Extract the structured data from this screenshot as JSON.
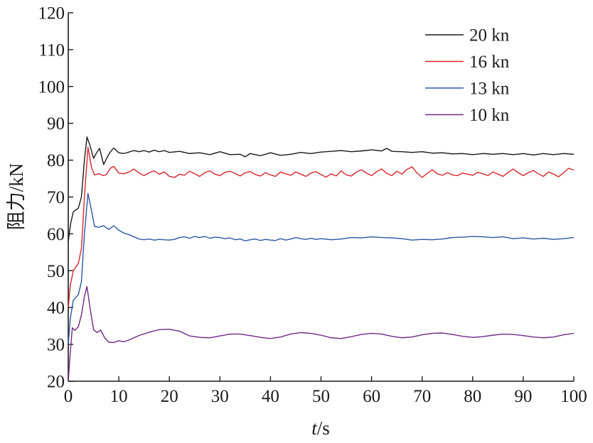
{
  "chart_data": {
    "type": "line",
    "xlabel_italic": "t",
    "xlabel_unit": "/s",
    "ylabel": "阻力/kN",
    "xlim": [
      0,
      100
    ],
    "ylim": [
      20,
      120
    ],
    "xticks": [
      0,
      10,
      20,
      30,
      40,
      50,
      60,
      70,
      80,
      90,
      100
    ],
    "yticks": [
      20,
      30,
      40,
      50,
      60,
      70,
      80,
      90,
      100,
      110,
      120
    ],
    "grid": false,
    "legend_position": "top-right",
    "series": [
      {
        "name": "20 kn",
        "color": "#1a1a1a",
        "points": [
          [
            0,
            58
          ],
          [
            0.5,
            63
          ],
          [
            1,
            66
          ],
          [
            2,
            67
          ],
          [
            2.6,
            70
          ],
          [
            3.2,
            80
          ],
          [
            3.7,
            86.3
          ],
          [
            4.3,
            84
          ],
          [
            5,
            80.5
          ],
          [
            5.6,
            82
          ],
          [
            6.2,
            83.2
          ],
          [
            7,
            78.8
          ],
          [
            7.6,
            80.5
          ],
          [
            8.2,
            82
          ],
          [
            9,
            83.3
          ],
          [
            10,
            82
          ],
          [
            11,
            81.8
          ],
          [
            12,
            82.2
          ],
          [
            13,
            82.6
          ],
          [
            14,
            82.3
          ],
          [
            15,
            82.6
          ],
          [
            16,
            82.2
          ],
          [
            17,
            82.7
          ],
          [
            18,
            82.3
          ],
          [
            19,
            82.6
          ],
          [
            20,
            82.1
          ],
          [
            22,
            82.4
          ],
          [
            24,
            81.8
          ],
          [
            26,
            82
          ],
          [
            28,
            81.5
          ],
          [
            30,
            82.3
          ],
          [
            32,
            81.5
          ],
          [
            34,
            81.6
          ],
          [
            35,
            80.9
          ],
          [
            36,
            81.8
          ],
          [
            38,
            81.2
          ],
          [
            40,
            82
          ],
          [
            42,
            81.3
          ],
          [
            44,
            81.6
          ],
          [
            46,
            82.1
          ],
          [
            48,
            81.8
          ],
          [
            50,
            82.2
          ],
          [
            52,
            82.4
          ],
          [
            54,
            82.6
          ],
          [
            56,
            82.3
          ],
          [
            58,
            82.5
          ],
          [
            60,
            82.8
          ],
          [
            62,
            82.5
          ],
          [
            63,
            83.2
          ],
          [
            64,
            82.4
          ],
          [
            66,
            82.3
          ],
          [
            68,
            82.1
          ],
          [
            70,
            82.3
          ],
          [
            72,
            81.9
          ],
          [
            74,
            82
          ],
          [
            76,
            81.7
          ],
          [
            78,
            81.8
          ],
          [
            80,
            81.5
          ],
          [
            82,
            81.8
          ],
          [
            84,
            81.6
          ],
          [
            86,
            81.8
          ],
          [
            88,
            81.5
          ],
          [
            90,
            81.8
          ],
          [
            92,
            81.4
          ],
          [
            94,
            81.8
          ],
          [
            96,
            81.5
          ],
          [
            98,
            81.8
          ],
          [
            100,
            81.6
          ]
        ]
      },
      {
        "name": "16 kn",
        "color": "#d8262b",
        "points": [
          [
            0,
            40
          ],
          [
            0.4,
            46
          ],
          [
            1,
            50
          ],
          [
            2,
            52
          ],
          [
            2.6,
            56
          ],
          [
            3.2,
            70
          ],
          [
            3.9,
            83.5
          ],
          [
            4.6,
            78
          ],
          [
            5.2,
            76
          ],
          [
            6,
            76.3
          ],
          [
            7,
            75.8
          ],
          [
            7.6,
            76.2
          ],
          [
            8.3,
            77.8
          ],
          [
            9,
            78.3
          ],
          [
            10,
            76.5
          ],
          [
            11,
            76.3
          ],
          [
            12,
            76.8
          ],
          [
            13,
            77.6
          ],
          [
            14,
            76.5
          ],
          [
            15,
            75.8
          ],
          [
            16,
            76.6
          ],
          [
            17,
            77.1
          ],
          [
            18,
            76.2
          ],
          [
            19,
            76.8
          ],
          [
            20,
            75.6
          ],
          [
            21,
            75.3
          ],
          [
            22,
            76.2
          ],
          [
            23,
            75.9
          ],
          [
            24,
            77
          ],
          [
            25,
            76.3
          ],
          [
            26,
            75.6
          ],
          [
            27,
            76.6
          ],
          [
            28,
            77.1
          ],
          [
            29,
            76.2
          ],
          [
            30,
            75.8
          ],
          [
            31,
            76.7
          ],
          [
            32,
            77
          ],
          [
            33,
            76.4
          ],
          [
            34,
            75.7
          ],
          [
            35,
            76.6
          ],
          [
            36,
            76.9
          ],
          [
            37,
            76.1
          ],
          [
            38,
            75.7
          ],
          [
            39,
            76.6
          ],
          [
            40,
            76
          ],
          [
            41,
            75.6
          ],
          [
            42,
            76.8
          ],
          [
            43,
            76.3
          ],
          [
            44,
            75.9
          ],
          [
            45,
            76.8
          ],
          [
            46,
            76.2
          ],
          [
            47,
            75.6
          ],
          [
            48,
            76.5
          ],
          [
            49,
            76.9
          ],
          [
            50,
            76.1
          ],
          [
            51,
            75.4
          ],
          [
            52,
            76.3
          ],
          [
            53,
            75.7
          ],
          [
            54,
            77.1
          ],
          [
            55,
            76
          ],
          [
            56,
            75.7
          ],
          [
            57,
            76.8
          ],
          [
            58,
            77.4
          ],
          [
            59,
            76.5
          ],
          [
            60,
            75.8
          ],
          [
            61,
            76.9
          ],
          [
            62,
            77.6
          ],
          [
            63,
            76.4
          ],
          [
            64,
            75.8
          ],
          [
            65,
            77
          ],
          [
            66,
            76.2
          ],
          [
            67,
            77.5
          ],
          [
            68,
            78.2
          ],
          [
            69,
            76.5
          ],
          [
            70,
            75.3
          ],
          [
            71,
            76.4
          ],
          [
            72,
            77.4
          ],
          [
            73,
            76.3
          ],
          [
            74,
            75.9
          ],
          [
            75,
            76.6
          ],
          [
            76,
            76
          ],
          [
            77,
            75.8
          ],
          [
            78,
            76.5
          ],
          [
            79,
            76.2
          ],
          [
            80,
            75.9
          ],
          [
            81,
            76.7
          ],
          [
            82,
            76.3
          ],
          [
            83,
            75.8
          ],
          [
            84,
            76.8
          ],
          [
            85,
            76.2
          ],
          [
            86,
            75.6
          ],
          [
            87,
            76.7
          ],
          [
            88,
            77.6
          ],
          [
            89,
            76.6
          ],
          [
            90,
            75.8
          ],
          [
            91,
            76.6
          ],
          [
            92,
            77.2
          ],
          [
            93,
            76.3
          ],
          [
            94,
            75.6
          ],
          [
            95,
            76.8
          ],
          [
            96,
            76.2
          ],
          [
            97,
            75.5
          ],
          [
            98,
            76.6
          ],
          [
            99,
            77.8
          ],
          [
            100,
            77.3
          ]
        ]
      },
      {
        "name": "13 kn",
        "color": "#2b57a6",
        "points": [
          [
            0,
            30
          ],
          [
            0.4,
            37
          ],
          [
            1,
            42
          ],
          [
            2,
            43.5
          ],
          [
            2.6,
            47
          ],
          [
            3.2,
            60
          ],
          [
            3.9,
            71
          ],
          [
            4.5,
            67
          ],
          [
            5.2,
            62
          ],
          [
            6,
            61.8
          ],
          [
            7,
            62.2
          ],
          [
            8,
            61.2
          ],
          [
            9,
            62.2
          ],
          [
            10,
            61
          ],
          [
            11,
            60.2
          ],
          [
            12,
            59.8
          ],
          [
            13,
            59.2
          ],
          [
            14,
            58.6
          ],
          [
            15,
            58.4
          ],
          [
            16,
            58.6
          ],
          [
            17,
            58.3
          ],
          [
            18,
            58.5
          ],
          [
            19,
            58.4
          ],
          [
            20,
            58.3
          ],
          [
            21,
            58.5
          ],
          [
            22,
            59
          ],
          [
            23,
            59.2
          ],
          [
            24,
            58.8
          ],
          [
            25,
            59.3
          ],
          [
            26,
            59
          ],
          [
            27,
            59.3
          ],
          [
            28,
            58.8
          ],
          [
            29,
            59.1
          ],
          [
            30,
            59
          ],
          [
            31,
            58.7
          ],
          [
            32,
            58.9
          ],
          [
            33,
            58.4
          ],
          [
            34,
            58.6
          ],
          [
            35,
            58.1
          ],
          [
            36,
            58.4
          ],
          [
            37,
            58.6
          ],
          [
            38,
            58.2
          ],
          [
            39,
            58.5
          ],
          [
            40,
            58.3
          ],
          [
            41,
            58.2
          ],
          [
            42,
            58.7
          ],
          [
            43,
            58.3
          ],
          [
            44,
            58.6
          ],
          [
            45,
            59
          ],
          [
            46,
            58.7
          ],
          [
            47,
            58.5
          ],
          [
            48,
            58.8
          ],
          [
            49,
            58.5
          ],
          [
            50,
            58.7
          ],
          [
            52,
            58.4
          ],
          [
            54,
            58.6
          ],
          [
            56,
            59
          ],
          [
            58,
            58.9
          ],
          [
            60,
            59.2
          ],
          [
            62,
            59
          ],
          [
            64,
            58.9
          ],
          [
            66,
            58.7
          ],
          [
            68,
            58.3
          ],
          [
            70,
            58.5
          ],
          [
            72,
            58.4
          ],
          [
            74,
            58.6
          ],
          [
            76,
            59
          ],
          [
            78,
            59.1
          ],
          [
            80,
            59.3
          ],
          [
            82,
            59.2
          ],
          [
            84,
            59
          ],
          [
            86,
            59.2
          ],
          [
            88,
            58.7
          ],
          [
            90,
            58.9
          ],
          [
            92,
            58.6
          ],
          [
            94,
            58.8
          ],
          [
            96,
            58.5
          ],
          [
            98,
            58.7
          ],
          [
            100,
            59
          ]
        ]
      },
      {
        "name": "10 kn",
        "color": "#6e2a86",
        "points": [
          [
            0,
            20
          ],
          [
            0.3,
            26
          ],
          [
            0.8,
            34.5
          ],
          [
            1.3,
            33.8
          ],
          [
            2,
            34.8
          ],
          [
            2.6,
            38
          ],
          [
            3.2,
            43
          ],
          [
            3.7,
            45.7
          ],
          [
            4.3,
            40
          ],
          [
            5,
            34
          ],
          [
            5.7,
            33.2
          ],
          [
            6.4,
            33.9
          ],
          [
            7.2,
            31.8
          ],
          [
            8,
            30.6
          ],
          [
            9,
            30.5
          ],
          [
            10,
            31
          ],
          [
            11,
            30.7
          ],
          [
            12,
            31.2
          ],
          [
            14,
            32.4
          ],
          [
            16,
            33.3
          ],
          [
            18,
            34
          ],
          [
            20,
            34.1
          ],
          [
            22,
            33.6
          ],
          [
            24,
            32.3
          ],
          [
            26,
            31.9
          ],
          [
            28,
            31.8
          ],
          [
            30,
            32.3
          ],
          [
            32,
            32.8
          ],
          [
            34,
            32.8
          ],
          [
            36,
            32.4
          ],
          [
            38,
            31.9
          ],
          [
            40,
            31.6
          ],
          [
            42,
            32
          ],
          [
            44,
            32.8
          ],
          [
            46,
            33.2
          ],
          [
            48,
            33
          ],
          [
            50,
            32.5
          ],
          [
            52,
            31.8
          ],
          [
            54,
            31.6
          ],
          [
            56,
            32.1
          ],
          [
            58,
            32.7
          ],
          [
            60,
            33
          ],
          [
            62,
            32.8
          ],
          [
            64,
            32.2
          ],
          [
            66,
            31.8
          ],
          [
            68,
            32
          ],
          [
            70,
            32.6
          ],
          [
            72,
            33
          ],
          [
            74,
            33.1
          ],
          [
            76,
            32.7
          ],
          [
            78,
            32.2
          ],
          [
            80,
            31.9
          ],
          [
            82,
            32.1
          ],
          [
            84,
            32.5
          ],
          [
            86,
            32.8
          ],
          [
            88,
            32.7
          ],
          [
            90,
            32.4
          ],
          [
            92,
            32
          ],
          [
            94,
            31.8
          ],
          [
            96,
            32
          ],
          [
            98,
            32.6
          ],
          [
            100,
            33
          ]
        ]
      }
    ]
  }
}
